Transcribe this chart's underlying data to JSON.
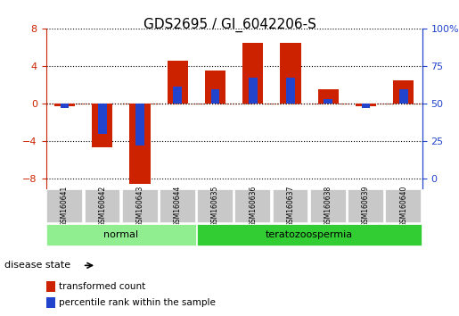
{
  "title": "GDS2695 / GI_6042206-S",
  "samples": [
    "GSM160641",
    "GSM160642",
    "GSM160643",
    "GSM160644",
    "GSM160635",
    "GSM160636",
    "GSM160637",
    "GSM160638",
    "GSM160639",
    "GSM160640"
  ],
  "red_values": [
    -0.3,
    -4.6,
    -8.5,
    4.6,
    3.5,
    6.5,
    6.5,
    1.5,
    -0.3,
    2.5
  ],
  "blue_values": [
    -0.5,
    -3.2,
    -4.4,
    1.8,
    1.5,
    2.8,
    2.8,
    0.5,
    -0.5,
    1.5
  ],
  "groups": [
    {
      "label": "normal",
      "start": 0,
      "end": 4,
      "color": "#90ee90"
    },
    {
      "label": "teratozoospermia",
      "start": 4,
      "end": 10,
      "color": "#32cd32"
    }
  ],
  "ylim": [
    -9,
    8
  ],
  "yticks": [
    -8,
    -4,
    0,
    4,
    8
  ],
  "right_ylabels": [
    "0",
    "25",
    "50",
    "75",
    "100%"
  ],
  "red_color": "#cc2200",
  "blue_color": "#2244cc",
  "bar_width": 0.55,
  "legend_labels": [
    "transformed count",
    "percentile rank within the sample"
  ],
  "disease_state_label": "disease state",
  "background_color": "#ffffff",
  "plot_bg_color": "#ffffff",
  "label_area_color": "#c8c8c8"
}
